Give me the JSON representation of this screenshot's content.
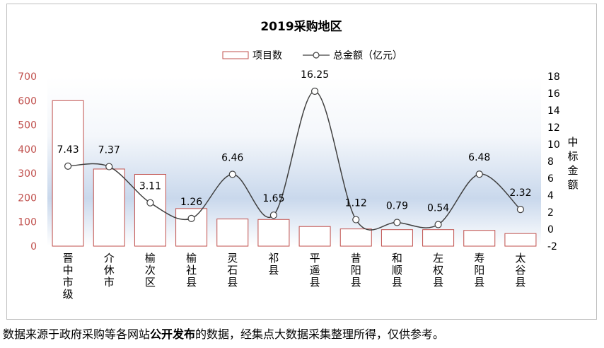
{
  "chart_data": {
    "type": "bar+line",
    "title": "2019采购地区",
    "categories": [
      "晋中市级",
      "介休市",
      "榆次区",
      "榆社县",
      "灵石县",
      "祁县",
      "平遥县",
      "昔阳县",
      "和顺县",
      "左权县",
      "寿阳县",
      "太谷县"
    ],
    "series": [
      {
        "name": "项目数",
        "type": "bar",
        "axis": "left",
        "values": [
          600,
          318,
          296,
          155,
          112,
          110,
          81,
          71,
          68,
          68,
          65,
          52
        ]
      },
      {
        "name": "总金额（亿元）",
        "type": "line",
        "axis": "right",
        "smooth": true,
        "values": [
          7.43,
          7.37,
          3.11,
          1.26,
          6.46,
          1.65,
          16.25,
          1.12,
          0.79,
          0.54,
          6.48,
          2.32
        ]
      }
    ],
    "y_left": {
      "min": 0,
      "max": 700,
      "ticks": [
        "0",
        "100",
        "200",
        "300",
        "400",
        "500",
        "600",
        "700"
      ]
    },
    "y_right": {
      "min": -2,
      "max": 18,
      "ticks": [
        "-2",
        "0",
        "2",
        "4",
        "6",
        "8",
        "10",
        "12",
        "14",
        "16",
        "18"
      ],
      "label": "中标金额"
    },
    "legend_position": "top-center",
    "colors": {
      "bar_border": "#c0504d",
      "line": "#404040",
      "left_axis_text": "#c0504d",
      "text": "#000000"
    }
  },
  "footer": {
    "pre": "数据来源于政府采购等各网站",
    "bold": "公开发布",
    "post": "的数据，经集点大数据采集整理所得，仅供参考。"
  }
}
